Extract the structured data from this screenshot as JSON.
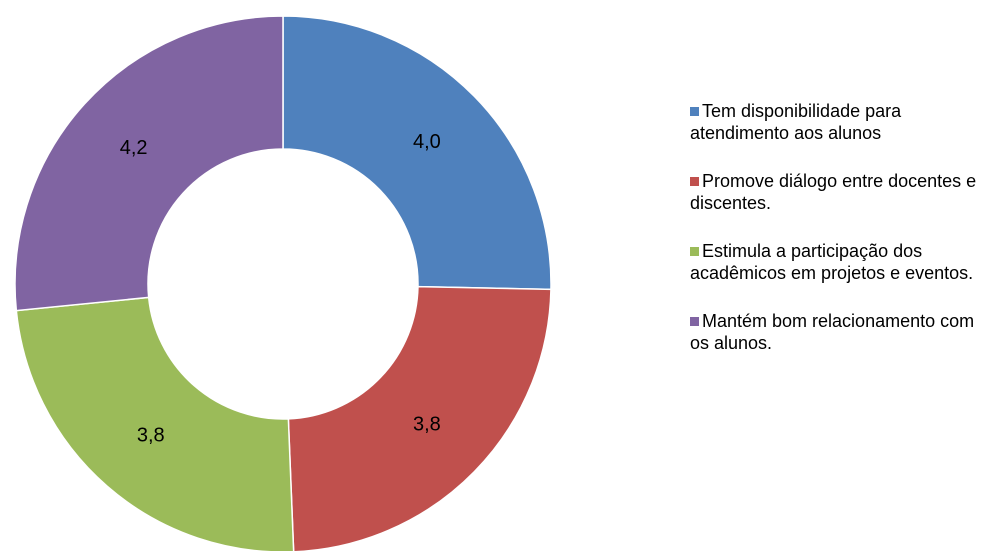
{
  "chart_data": {
    "type": "donut",
    "categories": [
      "Tem disponibilidade para atendimento aos alunos",
      "Promove diálogo entre docentes e discentes.",
      "Estimula a participação dos acadêmicos em projetos e eventos.",
      "Mantém bom relacionamento com os alunos."
    ],
    "values": [
      4.0,
      3.8,
      3.8,
      4.2
    ],
    "value_labels": [
      "4,0",
      "3,8",
      "3,8",
      "4,2"
    ],
    "colors": [
      "#4f81bd",
      "#c0504d",
      "#9bbb59",
      "#8064a2"
    ],
    "legend": "right"
  }
}
